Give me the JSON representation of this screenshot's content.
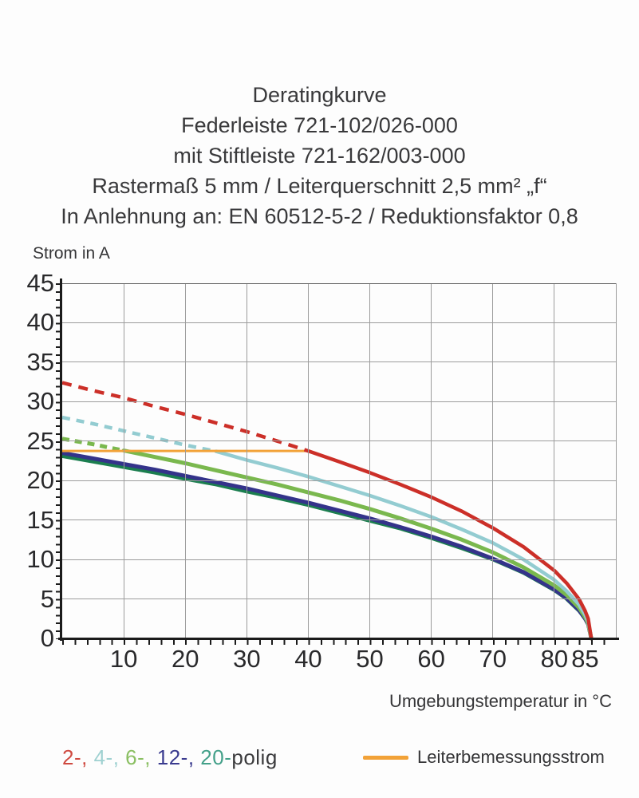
{
  "title_lines": [
    "Deratingkurve",
    "Federleiste 721-102/026-000",
    "mit Stiftleiste 721-162/003-000",
    "Rastermaß 5 mm / Leiterquerschnitt 2,5 mm² „f“",
    "In Anlehnung an: EN 60512-5-2 / Reduktionsfaktor 0,8"
  ],
  "y_axis_title": "Strom in A",
  "x_axis_title": "Umgebungstemperatur in °C",
  "legend": {
    "poles": [
      {
        "label": "2-,",
        "color": "#cf4a41"
      },
      {
        "label": "4-,",
        "color": "#9fd1d1"
      },
      {
        "label": "6-,",
        "color": "#8abf62"
      },
      {
        "label": "12-,",
        "color": "#3a3b8f"
      },
      {
        "label": "20-",
        "color": "#43a089"
      }
    ],
    "poles_suffix": "polig",
    "poles_suffix_color": "#3b3b3d",
    "rated_label": "Leiterbemessungsstrom",
    "rated_color": "#f2a238"
  },
  "chart_data": {
    "type": "line",
    "title": "Deratingkurve Federleiste 721-102/026-000 mit Stiftleiste 721-162/003-000",
    "xlabel": "Umgebungstemperatur in °C",
    "ylabel": "Strom in A",
    "xlim": [
      0,
      90
    ],
    "ylim": [
      0,
      45
    ],
    "x_tick_labels": [
      10,
      20,
      30,
      40,
      50,
      60,
      70,
      80,
      85
    ],
    "y_tick_labels": [
      45,
      40,
      35,
      30,
      25,
      20,
      15,
      10,
      5,
      0
    ],
    "x_gridlines": [
      10,
      20,
      30,
      40,
      50,
      60,
      70,
      80,
      90
    ],
    "y_gridlines": [
      5,
      10,
      15,
      20,
      25,
      30,
      35,
      40,
      45
    ],
    "grid": true,
    "legend_position": "bottom",
    "note": "dashed above rated current (dash_until = °C where curve crosses Leiterbemessungsstrom)",
    "x_shared": [
      0,
      5,
      10,
      15,
      20,
      25,
      30,
      35,
      40,
      45,
      50,
      55,
      60,
      65,
      70,
      75,
      80,
      82,
      84,
      85,
      85.5,
      86
    ],
    "series": [
      {
        "name": "20-polig",
        "color": "#1b7e4f",
        "width": 4.5,
        "dash_until": null,
        "y": [
          23.1,
          22.4,
          21.7,
          21.0,
          20.2,
          19.5,
          18.6,
          17.8,
          16.9,
          15.9,
          14.9,
          13.9,
          12.7,
          11.4,
          10.0,
          8.3,
          6.1,
          5.0,
          3.5,
          2.5,
          1.75,
          0
        ]
      },
      {
        "name": "12-polig",
        "color": "#34338a",
        "width": 5,
        "dash_until": null,
        "y": [
          23.5,
          22.8,
          22.1,
          21.4,
          20.6,
          19.8,
          19.0,
          18.1,
          17.2,
          16.2,
          15.2,
          14.1,
          12.9,
          11.6,
          10.1,
          8.4,
          6.2,
          5.1,
          3.6,
          2.5,
          1.8,
          0
        ]
      },
      {
        "name": "6-polig",
        "color": "#7ab84e",
        "width": 5,
        "dash_until": 10,
        "dash_pattern": "9 7",
        "y": [
          25.3,
          24.6,
          23.8,
          23.0,
          22.2,
          21.3,
          20.4,
          19.5,
          18.5,
          17.5,
          16.4,
          15.2,
          13.9,
          12.5,
          10.9,
          9.0,
          6.7,
          5.5,
          3.9,
          2.7,
          1.9,
          0
        ]
      },
      {
        "name": "4-polig",
        "color": "#93ccd1",
        "width": 4.5,
        "dash_until": 25,
        "dash_pattern": "10 8",
        "y": [
          28.0,
          27.2,
          26.3,
          25.4,
          24.5,
          23.7,
          22.6,
          21.6,
          20.5,
          19.3,
          18.1,
          16.8,
          15.4,
          13.8,
          12.1,
          10.0,
          7.4,
          6.0,
          4.3,
          3.0,
          2.1,
          0
        ]
      },
      {
        "name": "Leiterbemessungsstrom",
        "color": "#f2a238",
        "width": 3,
        "dash_until": null,
        "x": [
          0,
          40
        ],
        "y": [
          23.75,
          23.75
        ]
      },
      {
        "name": "2-polig",
        "color": "#cc2f28",
        "width": 4.5,
        "dash_until": 40,
        "dash_pattern": "12 9",
        "y": [
          32.4,
          31.4,
          30.5,
          29.4,
          28.4,
          27.3,
          26.2,
          25.0,
          23.75,
          22.4,
          21.0,
          19.5,
          17.9,
          16.1,
          14.0,
          11.6,
          8.6,
          7.0,
          5.0,
          3.5,
          2.5,
          0
        ]
      }
    ]
  }
}
